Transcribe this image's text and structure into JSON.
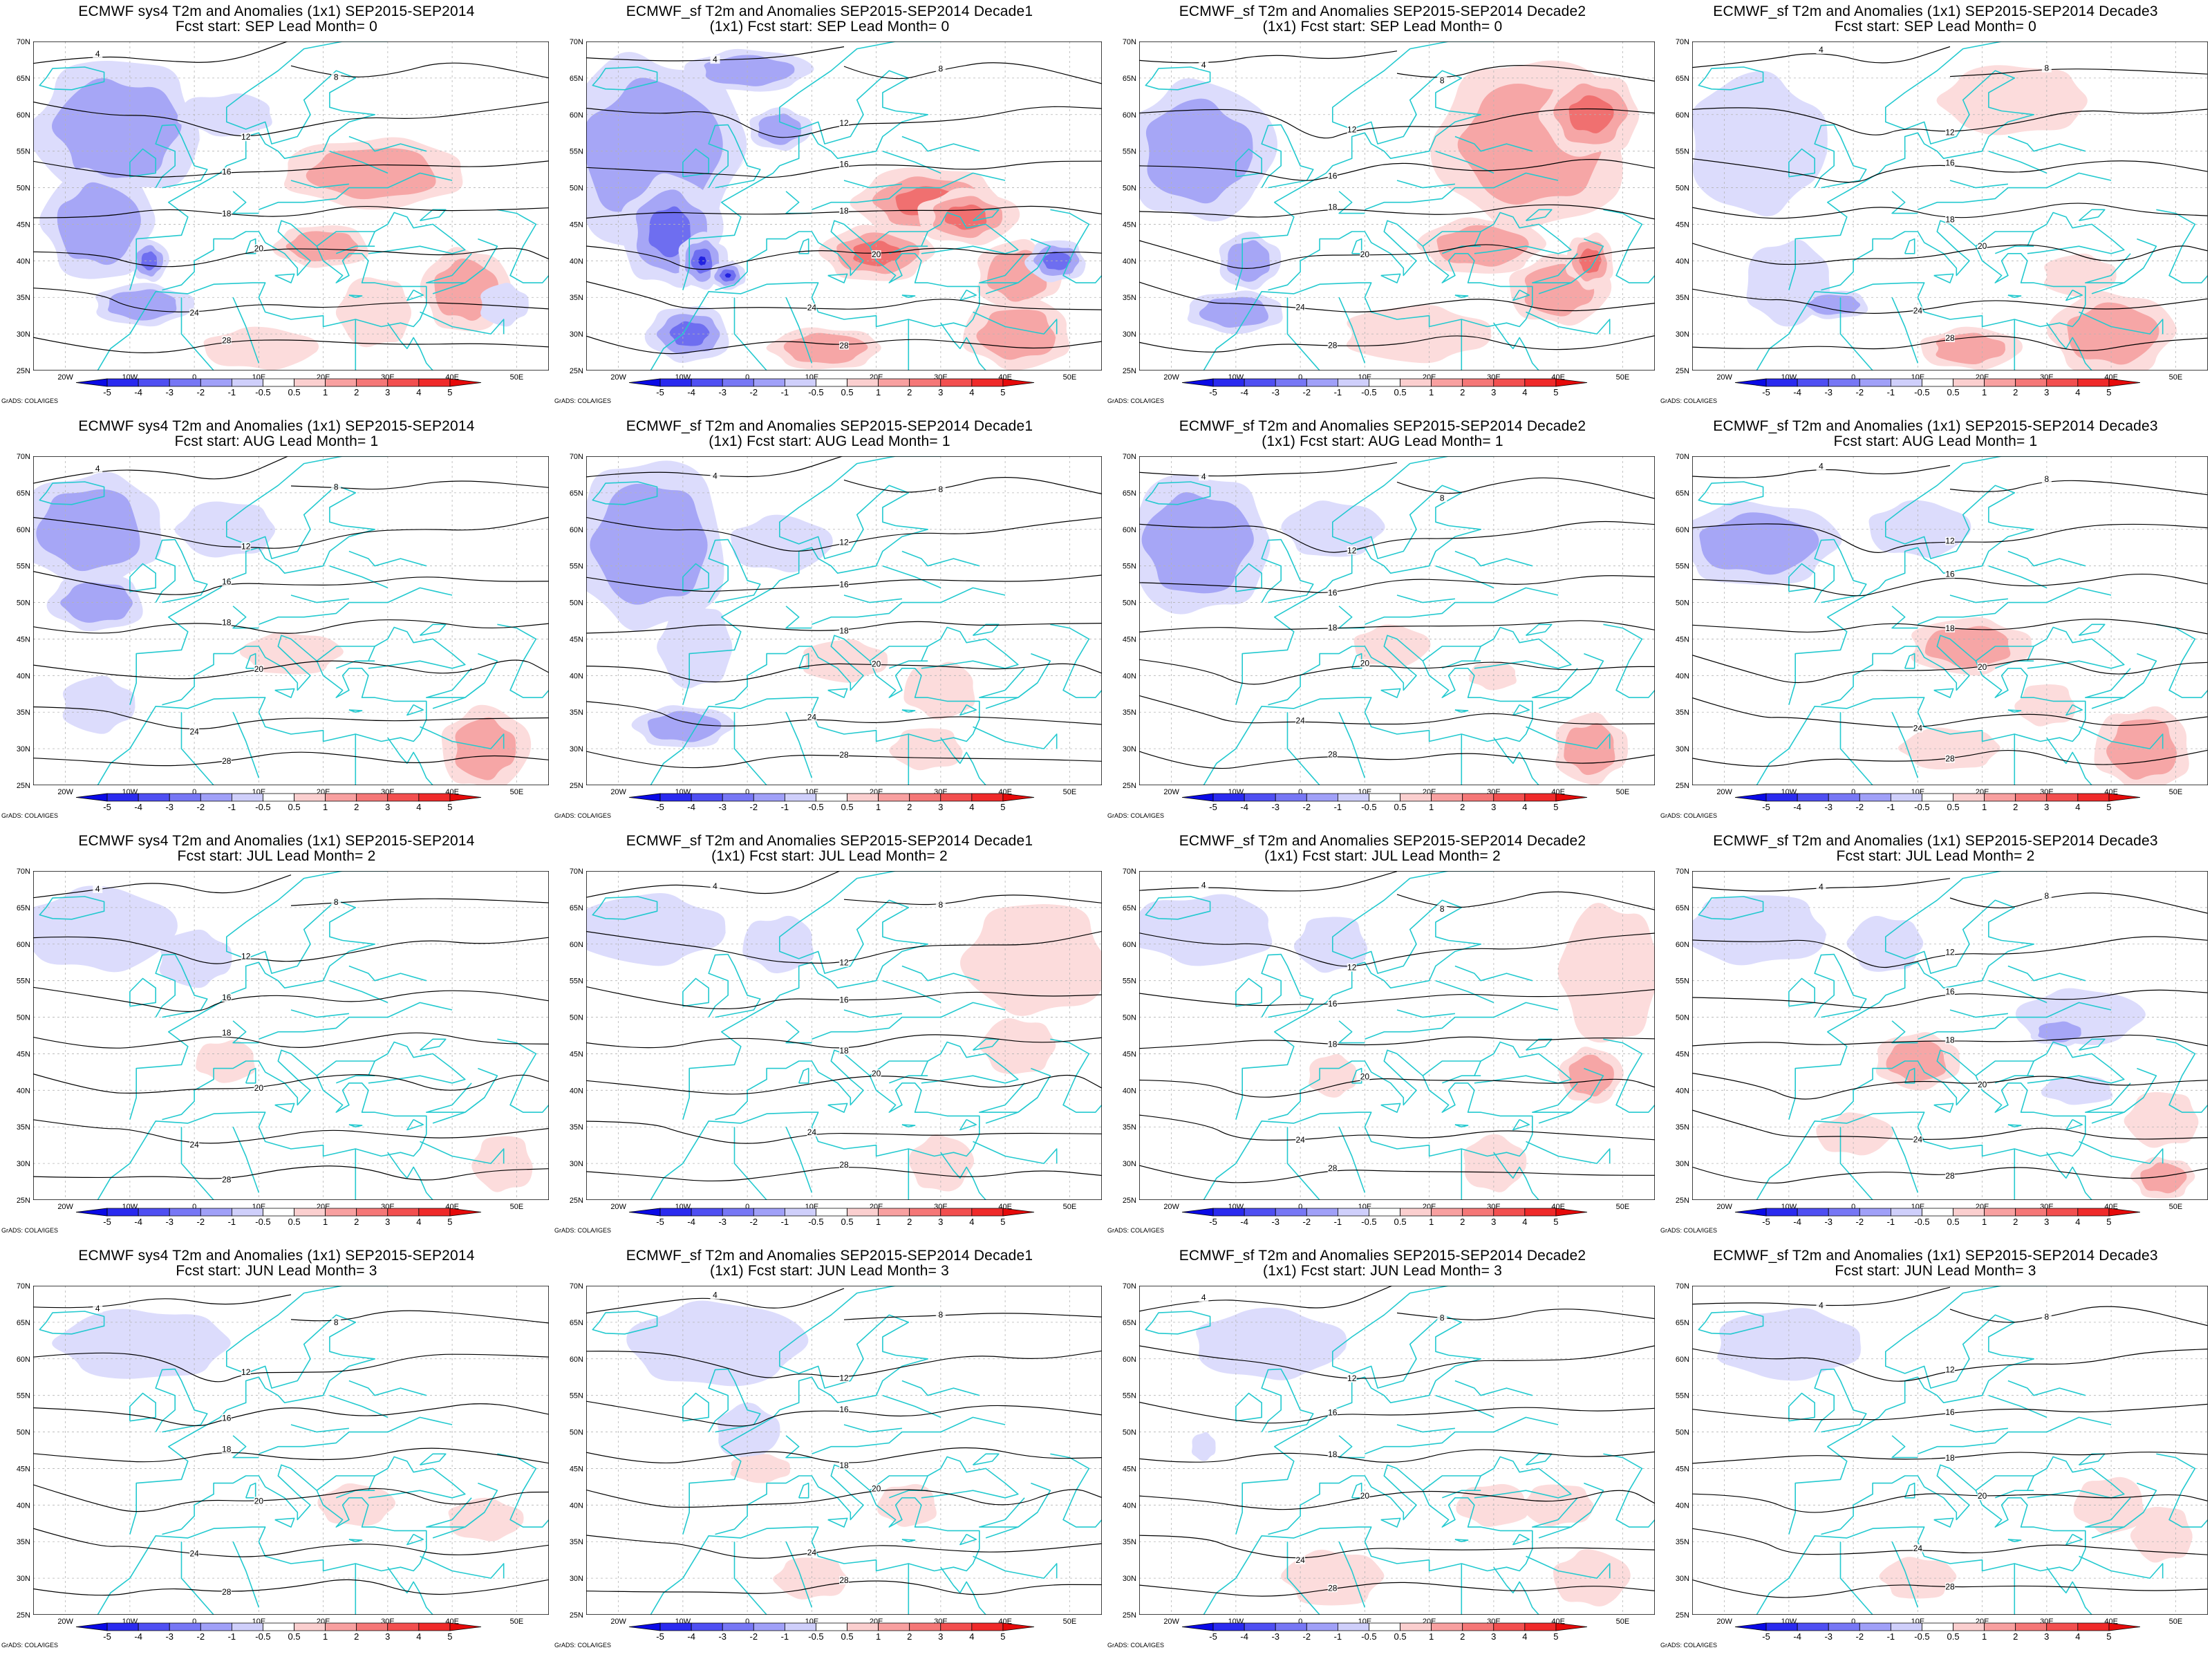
{
  "colorbar": {
    "labels": [
      "-5",
      "-4",
      "-3",
      "-2",
      "-1",
      "-0.5",
      "0.5",
      "1",
      "2",
      "3",
      "4",
      "5"
    ],
    "colors": [
      "#0a0ae6",
      "#2a2aef",
      "#4f4ff2",
      "#7777f5",
      "#a0a0f8",
      "#cfcffb",
      "#ffffff",
      "#fbcfcf",
      "#f8a0a0",
      "#f57777",
      "#f24f4f",
      "#ef2a2a",
      "#e60a0a"
    ]
  },
  "credit": "GrADS: COLA/IGES",
  "axes": {
    "lon_labels": [
      "20W",
      "10W",
      "0",
      "10E",
      "20E",
      "30E",
      "40E",
      "50E"
    ],
    "lat_labels": [
      "70N",
      "65N",
      "60N",
      "55N",
      "50N",
      "45N",
      "40N",
      "35N",
      "30N",
      "25N"
    ]
  },
  "contour_labels": [
    "4",
    "8",
    "12",
    "16",
    "18",
    "20",
    "24",
    "28"
  ],
  "colors": {
    "coast": "#23c9cf",
    "contour": "#000000",
    "cold": "#5b5bef",
    "warm": "#ef4f4f"
  },
  "panels": [
    {
      "line1": "ECMWF sys4 T2m and Anomalies (1x1) SEP2015-SEP2014",
      "line2": "Fcst start: SEP  Lead Month= 0",
      "pattern": "r1c1"
    },
    {
      "line1": "ECMWF_sf T2m and Anomalies SEP2015-SEP2014 Decade1",
      "line2": "(1x1) Fcst start: SEP  Lead Month= 0",
      "pattern": "r1c2"
    },
    {
      "line1": "ECMWF_sf T2m and Anomalies SEP2015-SEP2014 Decade2",
      "line2": "(1x1) Fcst start: SEP  Lead Month= 0",
      "pattern": "r1c3"
    },
    {
      "line1": "ECMWF_sf T2m and Anomalies (1x1) SEP2015-SEP2014 Decade3",
      "line2": "Fcst start: SEP  Lead Month= 0",
      "pattern": "r1c4"
    },
    {
      "line1": "ECMWF sys4 T2m and Anomalies (1x1) SEP2015-SEP2014",
      "line2": "Fcst start: AUG  Lead Month= 1",
      "pattern": "r2c1"
    },
    {
      "line1": "ECMWF_sf T2m and Anomalies SEP2015-SEP2014 Decade1",
      "line2": "(1x1) Fcst start: AUG  Lead Month= 1",
      "pattern": "r2c2"
    },
    {
      "line1": "ECMWF_sf T2m and Anomalies SEP2015-SEP2014 Decade2",
      "line2": "(1x1) Fcst start: AUG  Lead Month= 1",
      "pattern": "r2c3"
    },
    {
      "line1": "ECMWF_sf T2m and Anomalies (1x1) SEP2015-SEP2014 Decade3",
      "line2": "Fcst start: AUG  Lead Month= 1",
      "pattern": "r2c4"
    },
    {
      "line1": "ECMWF sys4 T2m and Anomalies (1x1) SEP2015-SEP2014",
      "line2": "Fcst start: JUL  Lead Month= 2",
      "pattern": "r3c1"
    },
    {
      "line1": "ECMWF_sf T2m and Anomalies SEP2015-SEP2014 Decade1",
      "line2": "(1x1) Fcst start: JUL  Lead Month= 2",
      "pattern": "r3c2"
    },
    {
      "line1": "ECMWF_sf T2m and Anomalies SEP2015-SEP2014 Decade2",
      "line2": "(1x1) Fcst start: JUL  Lead Month= 2",
      "pattern": "r3c3"
    },
    {
      "line1": "ECMWF_sf T2m and Anomalies (1x1) SEP2015-SEP2014 Decade3",
      "line2": "Fcst start: JUL  Lead Month= 2",
      "pattern": "r3c4"
    },
    {
      "line1": "ECMWF sys4 T2m and Anomalies (1x1) SEP2015-SEP2014",
      "line2": "Fcst start: JUN  Lead Month= 3",
      "pattern": "r4c1"
    },
    {
      "line1": "ECMWF_sf T2m and Anomalies SEP2015-SEP2014 Decade1",
      "line2": "(1x1) Fcst start: JUN  Lead Month= 3",
      "pattern": "r4c2"
    },
    {
      "line1": "ECMWF_sf T2m and Anomalies SEP2015-SEP2014 Decade2",
      "line2": "(1x1) Fcst start: JUN  Lead Month= 3",
      "pattern": "r4c3"
    },
    {
      "line1": "ECMWF_sf T2m and Anomalies (1x1) SEP2015-SEP2014 Decade3",
      "line2": "Fcst start: JUN  Lead Month= 3",
      "pattern": "r4c4"
    }
  ]
}
